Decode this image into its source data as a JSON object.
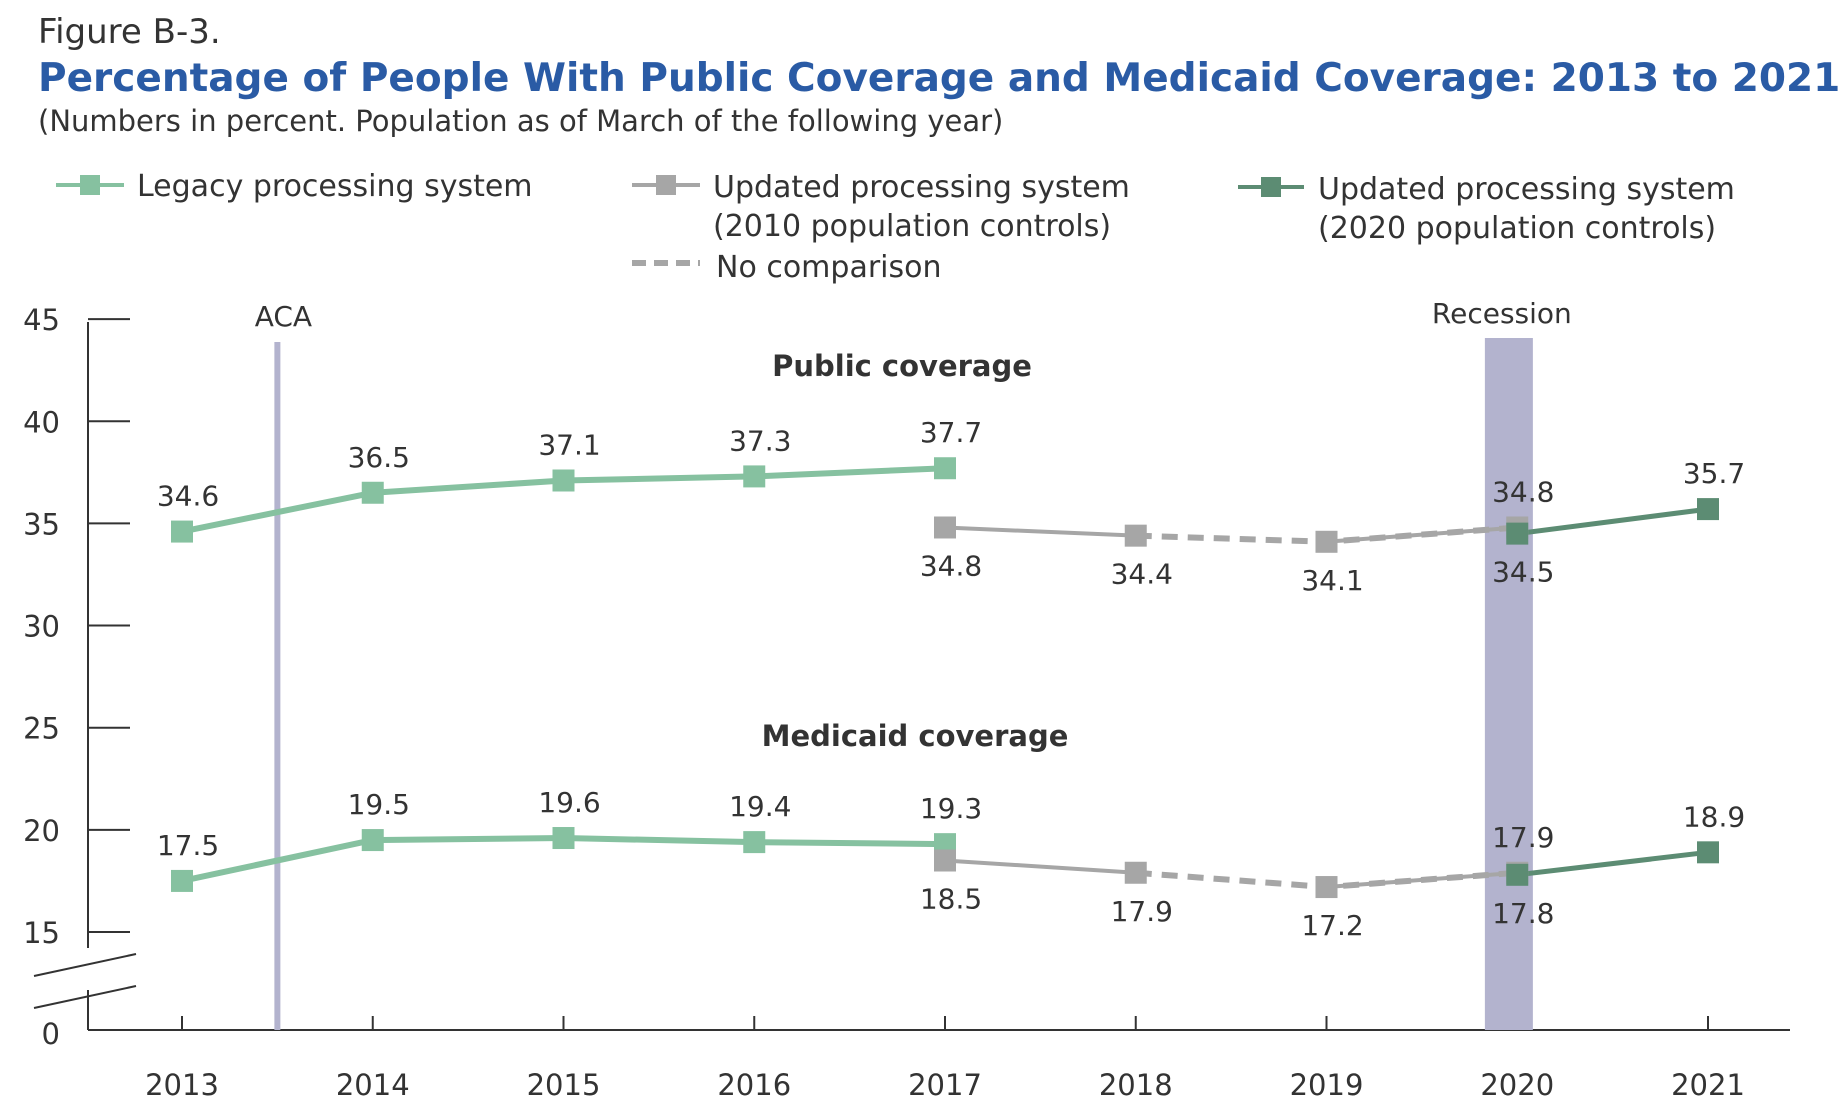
{
  "figure_label": "Figure B-3.",
  "colors": {
    "legacy": "#86c1a0",
    "updated_2010": "#a6a6a6",
    "updated_2020": "#5c8c73",
    "shade": "#b3b3ce",
    "title": "#2a5ba5"
  },
  "legend": {
    "legacy": "Legacy processing system",
    "updated_2010_line1": "Updated processing system",
    "updated_2010_line2": "(2010 population controls)",
    "updated_2020_line1": "Updated processing system",
    "updated_2020_line2": "(2020 population controls)",
    "no_comparison": "No comparison"
  },
  "chart_data": {
    "type": "line",
    "title": "Percentage of People With Public Coverage and Medicaid Coverage: 2013 to 2021",
    "subtitle": "(Numbers in percent. Population as of March of the following year)",
    "x": [
      "2013",
      "2014",
      "2015",
      "2016",
      "2017",
      "2018",
      "2019",
      "2020",
      "2021"
    ],
    "y_ticks": [
      "0",
      "15",
      "20",
      "25",
      "30",
      "35",
      "40",
      "45"
    ],
    "ylim": [
      15,
      45
    ],
    "axis_break": "between 0 and 15",
    "annotations": [
      {
        "text": "ACA",
        "kind": "vertical line",
        "position": "between 2013 and 2014"
      },
      {
        "text": "Recession",
        "kind": "shaded band",
        "position": "between 2019 and 2020"
      }
    ],
    "panels": [
      {
        "label": "Public coverage",
        "series": [
          {
            "name": "Legacy processing system",
            "x": [
              "2013",
              "2014",
              "2015",
              "2016",
              "2017"
            ],
            "values": [
              34.6,
              36.5,
              37.1,
              37.3,
              37.7
            ]
          },
          {
            "name": "Updated processing system (2010 population controls)",
            "x": [
              "2017",
              "2018"
            ],
            "values": [
              34.8,
              34.4
            ]
          },
          {
            "name": "No comparison",
            "x": [
              "2018",
              "2019",
              "2020"
            ],
            "values": [
              34.4,
              34.1,
              34.8
            ]
          },
          {
            "name": "Updated processing system (2010 population controls)",
            "x": [
              "2019",
              "2020"
            ],
            "values": [
              34.1,
              34.8
            ]
          },
          {
            "name": "Updated processing system (2020 population controls)",
            "x": [
              "2020",
              "2021"
            ],
            "values": [
              34.5,
              35.7
            ]
          }
        ]
      },
      {
        "label": "Medicaid coverage",
        "series": [
          {
            "name": "Legacy processing system",
            "x": [
              "2013",
              "2014",
              "2015",
              "2016",
              "2017"
            ],
            "values": [
              17.5,
              19.5,
              19.6,
              19.4,
              19.3
            ]
          },
          {
            "name": "Updated processing system (2010 population controls)",
            "x": [
              "2017",
              "2018"
            ],
            "values": [
              18.5,
              17.9
            ]
          },
          {
            "name": "No comparison",
            "x": [
              "2018",
              "2019",
              "2020"
            ],
            "values": [
              17.9,
              17.2,
              17.9
            ]
          },
          {
            "name": "Updated processing system (2010 population controls)",
            "x": [
              "2019",
              "2020"
            ],
            "values": [
              17.2,
              17.9
            ]
          },
          {
            "name": "Updated processing system (2020 population controls)",
            "x": [
              "2020",
              "2021"
            ],
            "values": [
              17.8,
              18.9
            ]
          }
        ]
      }
    ],
    "data_labels": [
      {
        "text": "34.6",
        "x": "2013",
        "y": 34.6,
        "place": "above"
      },
      {
        "text": "36.5",
        "x": "2014",
        "y": 36.5,
        "place": "above"
      },
      {
        "text": "37.1",
        "x": "2015",
        "y": 37.1,
        "place": "above"
      },
      {
        "text": "37.3",
        "x": "2016",
        "y": 37.3,
        "place": "above"
      },
      {
        "text": "37.7",
        "x": "2017",
        "y": 37.7,
        "place": "above"
      },
      {
        "text": "34.8",
        "x": "2017",
        "y": 34.8,
        "place": "below"
      },
      {
        "text": "34.4",
        "x": "2018",
        "y": 34.4,
        "place": "below"
      },
      {
        "text": "34.1",
        "x": "2019",
        "y": 34.1,
        "place": "below"
      },
      {
        "text": "34.8",
        "x": "2020",
        "y": 34.8,
        "place": "above"
      },
      {
        "text": "34.5",
        "x": "2020",
        "y": 34.5,
        "place": "below"
      },
      {
        "text": "35.7",
        "x": "2021",
        "y": 35.7,
        "place": "above"
      },
      {
        "text": "17.5",
        "x": "2013",
        "y": 17.5,
        "place": "above"
      },
      {
        "text": "19.5",
        "x": "2014",
        "y": 19.5,
        "place": "above"
      },
      {
        "text": "19.6",
        "x": "2015",
        "y": 19.6,
        "place": "above"
      },
      {
        "text": "19.4",
        "x": "2016",
        "y": 19.4,
        "place": "above"
      },
      {
        "text": "19.3",
        "x": "2017",
        "y": 19.3,
        "place": "above"
      },
      {
        "text": "18.5",
        "x": "2017",
        "y": 18.5,
        "place": "below"
      },
      {
        "text": "17.9",
        "x": "2018",
        "y": 17.9,
        "place": "below"
      },
      {
        "text": "17.2",
        "x": "2019",
        "y": 17.2,
        "place": "below"
      },
      {
        "text": "17.9",
        "x": "2020",
        "y": 17.9,
        "place": "above"
      },
      {
        "text": "17.8",
        "x": "2020",
        "y": 17.8,
        "place": "below"
      },
      {
        "text": "18.9",
        "x": "2021",
        "y": 18.9,
        "place": "above"
      }
    ]
  }
}
